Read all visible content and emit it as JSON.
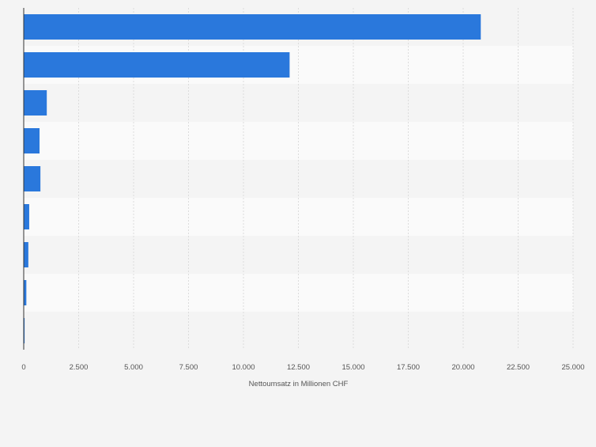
{
  "chart_data": {
    "type": "bar",
    "orientation": "horizontal",
    "categories": [
      "",
      "",
      "",
      "",
      "",
      "",
      "",
      "",
      ""
    ],
    "values": [
      20800,
      12100,
      1050,
      720,
      760,
      250,
      210,
      120,
      40
    ],
    "title": "",
    "xlabel": "Nettoumsatz in Millionen CHF",
    "ylabel": "",
    "xlim": [
      0,
      25000
    ],
    "x_ticks": [
      0,
      2500,
      5000,
      7500,
      10000,
      12500,
      15000,
      17500,
      20000,
      22500,
      25000
    ],
    "x_tick_labels": [
      "0",
      "2.500",
      "5.000",
      "7.500",
      "10.000",
      "12.500",
      "15.000",
      "17.500",
      "20.000",
      "22.500",
      "25.000"
    ],
    "grid": true,
    "legend": "none",
    "bar_color": "#2a78dc",
    "band_colors": [
      "#f4f4f4",
      "#fafafa"
    ],
    "grid_color": "#dcdcdc",
    "text_color": "#555555"
  }
}
